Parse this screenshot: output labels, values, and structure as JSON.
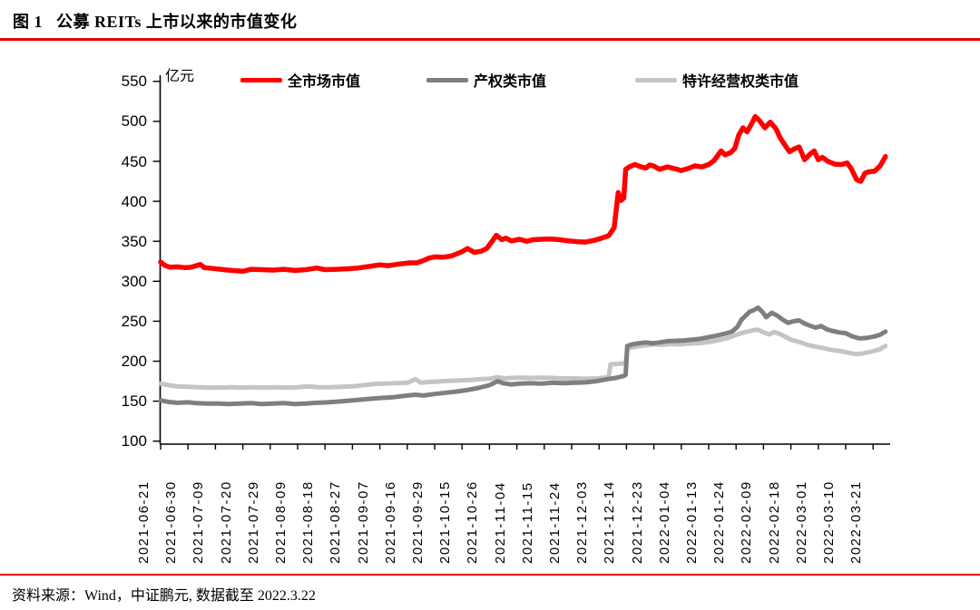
{
  "header": {
    "title": "图 1   公募 REITs 上市以来的市值变化"
  },
  "footer": {
    "source": "资料来源：Wind，中证鹏元, 数据截至 2022.3.22"
  },
  "accent_color": "#e60000",
  "chart_data": {
    "type": "line",
    "title": "公募REITs上市以来的市值变化",
    "unit_label": "亿元",
    "xlabel": "",
    "ylabel": "亿元",
    "ylim": [
      100,
      550
    ],
    "yticks": [
      100,
      150,
      200,
      250,
      300,
      350,
      400,
      450,
      500,
      550
    ],
    "grid": false,
    "legend_position": "top",
    "x_units": "tick_index (0 = first date label, 26 = last date label; data extends to 2022-03-22)",
    "x_tick_labels": [
      "2021-06-21",
      "2021-06-30",
      "2021-07-09",
      "2021-07-20",
      "2021-07-29",
      "2021-08-09",
      "2021-08-18",
      "2021-08-27",
      "2021-09-07",
      "2021-09-16",
      "2021-09-29",
      "2021-10-15",
      "2021-10-26",
      "2021-11-04",
      "2021-11-15",
      "2021-11-24",
      "2021-12-03",
      "2021-12-14",
      "2021-12-23",
      "2022-01-04",
      "2022-01-13",
      "2022-01-24",
      "2022-02-09",
      "2022-02-18",
      "2022-03-01",
      "2022-03-10",
      "2022-03-21"
    ],
    "series": [
      {
        "id": "franchise-type",
        "name": "特许经营权类市值",
        "color": "#c4c4c4",
        "width": 5,
        "points": [
          [
            0,
            172
          ],
          [
            0.3,
            170
          ],
          [
            0.6,
            168.5
          ],
          [
            1.0,
            168
          ],
          [
            1.4,
            167.5
          ],
          [
            1.8,
            167
          ],
          [
            2.2,
            167
          ],
          [
            2.6,
            167.5
          ],
          [
            3.0,
            167
          ],
          [
            3.4,
            167.5
          ],
          [
            3.8,
            167
          ],
          [
            4.2,
            167.5
          ],
          [
            4.6,
            167
          ],
          [
            5.0,
            167.5
          ],
          [
            5.4,
            168.5
          ],
          [
            5.8,
            167.5
          ],
          [
            6.2,
            167.5
          ],
          [
            6.6,
            168
          ],
          [
            7.0,
            168.5
          ],
          [
            7.4,
            170
          ],
          [
            7.8,
            171.5
          ],
          [
            8.2,
            172
          ],
          [
            8.6,
            172.5
          ],
          [
            9.0,
            173
          ],
          [
            9.3,
            177.5
          ],
          [
            9.5,
            173
          ],
          [
            9.8,
            174
          ],
          [
            10.1,
            174.5
          ],
          [
            10.5,
            175.5
          ],
          [
            10.9,
            176
          ],
          [
            11.3,
            176.5
          ],
          [
            11.7,
            177.5
          ],
          [
            12.0,
            178
          ],
          [
            12.3,
            180
          ],
          [
            12.55,
            178.5
          ],
          [
            12.8,
            179
          ],
          [
            13.1,
            179.5
          ],
          [
            13.5,
            179
          ],
          [
            13.9,
            179.5
          ],
          [
            14.3,
            179
          ],
          [
            14.7,
            178.5
          ],
          [
            15.1,
            178.5
          ],
          [
            15.5,
            178
          ],
          [
            15.9,
            178.5
          ],
          [
            16.2,
            179.5
          ],
          [
            16.35,
            181
          ],
          [
            16.42,
            196
          ],
          [
            16.6,
            196.5
          ],
          [
            16.8,
            197
          ],
          [
            16.97,
            197.5
          ],
          [
            17.03,
            216
          ],
          [
            17.25,
            217.5
          ],
          [
            17.5,
            219
          ],
          [
            17.75,
            220
          ],
          [
            18.0,
            221
          ],
          [
            18.3,
            220.5
          ],
          [
            18.6,
            221.5
          ],
          [
            18.9,
            221
          ],
          [
            19.2,
            222
          ],
          [
            19.5,
            222.5
          ],
          [
            19.8,
            223
          ],
          [
            20.1,
            224.5
          ],
          [
            20.4,
            226.5
          ],
          [
            20.7,
            229
          ],
          [
            21.0,
            233
          ],
          [
            21.3,
            236
          ],
          [
            21.6,
            238.5
          ],
          [
            21.8,
            239.5
          ],
          [
            22.0,
            236
          ],
          [
            22.2,
            233.5
          ],
          [
            22.4,
            236.5
          ],
          [
            22.6,
            234
          ],
          [
            22.8,
            230.5
          ],
          [
            23.0,
            227
          ],
          [
            23.2,
            225
          ],
          [
            23.4,
            223
          ],
          [
            23.6,
            220.5
          ],
          [
            23.85,
            218.5
          ],
          [
            24.1,
            217
          ],
          [
            24.35,
            215
          ],
          [
            24.6,
            213.5
          ],
          [
            24.85,
            212.5
          ],
          [
            25.1,
            210.5
          ],
          [
            25.35,
            209
          ],
          [
            25.6,
            209.5
          ],
          [
            25.85,
            211.5
          ],
          [
            26.05,
            213
          ],
          [
            26.25,
            215
          ],
          [
            26.45,
            219
          ]
        ]
      },
      {
        "id": "property-type",
        "name": "产权类市值",
        "color": "#7f7f7f",
        "width": 5,
        "points": [
          [
            0,
            151
          ],
          [
            0.3,
            149
          ],
          [
            0.6,
            148
          ],
          [
            1.0,
            148.5
          ],
          [
            1.3,
            147.5
          ],
          [
            1.7,
            147
          ],
          [
            2.1,
            147
          ],
          [
            2.5,
            146.5
          ],
          [
            2.9,
            147
          ],
          [
            3.3,
            147.5
          ],
          [
            3.7,
            146.5
          ],
          [
            4.1,
            147
          ],
          [
            4.5,
            147.5
          ],
          [
            4.9,
            146.5
          ],
          [
            5.3,
            147
          ],
          [
            5.7,
            148
          ],
          [
            6.1,
            148.5
          ],
          [
            6.5,
            149.5
          ],
          [
            7.0,
            151
          ],
          [
            7.5,
            152.5
          ],
          [
            8.0,
            154
          ],
          [
            8.5,
            155
          ],
          [
            9.0,
            157
          ],
          [
            9.3,
            158
          ],
          [
            9.6,
            157
          ],
          [
            10.0,
            159
          ],
          [
            10.4,
            160.5
          ],
          [
            10.8,
            162
          ],
          [
            11.2,
            164
          ],
          [
            11.6,
            166.5
          ],
          [
            12.0,
            170
          ],
          [
            12.3,
            175
          ],
          [
            12.5,
            172.5
          ],
          [
            12.8,
            171
          ],
          [
            13.1,
            172
          ],
          [
            13.5,
            172.5
          ],
          [
            13.9,
            172
          ],
          [
            14.3,
            173
          ],
          [
            14.7,
            172.5
          ],
          [
            15.1,
            173
          ],
          [
            15.5,
            173.5
          ],
          [
            15.9,
            175
          ],
          [
            16.3,
            177.5
          ],
          [
            16.6,
            179
          ],
          [
            16.9,
            181.5
          ],
          [
            16.97,
            183
          ],
          [
            17.03,
            219
          ],
          [
            17.2,
            221
          ],
          [
            17.45,
            222.5
          ],
          [
            17.7,
            223.5
          ],
          [
            17.95,
            222.5
          ],
          [
            18.2,
            223.5
          ],
          [
            18.5,
            225
          ],
          [
            18.8,
            225.5
          ],
          [
            19.1,
            226
          ],
          [
            19.4,
            227
          ],
          [
            19.7,
            228
          ],
          [
            20.0,
            230
          ],
          [
            20.3,
            232
          ],
          [
            20.6,
            234.5
          ],
          [
            20.85,
            237
          ],
          [
            21.05,
            243
          ],
          [
            21.2,
            252
          ],
          [
            21.35,
            257
          ],
          [
            21.5,
            262
          ],
          [
            21.65,
            264
          ],
          [
            21.8,
            267
          ],
          [
            21.95,
            262
          ],
          [
            22.1,
            255
          ],
          [
            22.3,
            260.5
          ],
          [
            22.5,
            257
          ],
          [
            22.7,
            252
          ],
          [
            22.9,
            248
          ],
          [
            23.1,
            250
          ],
          [
            23.3,
            251
          ],
          [
            23.5,
            247
          ],
          [
            23.7,
            244.5
          ],
          [
            23.9,
            242
          ],
          [
            24.1,
            244
          ],
          [
            24.3,
            240
          ],
          [
            24.5,
            238
          ],
          [
            24.75,
            236
          ],
          [
            25.0,
            235
          ],
          [
            25.25,
            231
          ],
          [
            25.5,
            228.5
          ],
          [
            25.75,
            229
          ],
          [
            26.05,
            231
          ],
          [
            26.25,
            233
          ],
          [
            26.45,
            237
          ]
        ]
      },
      {
        "id": "total-market",
        "name": "全市场市值",
        "color": "#fe0000",
        "width": 5.5,
        "points": [
          [
            0,
            324
          ],
          [
            0.15,
            320
          ],
          [
            0.35,
            317.5
          ],
          [
            0.6,
            318
          ],
          [
            0.9,
            317
          ],
          [
            1.1,
            317.5
          ],
          [
            1.45,
            321
          ],
          [
            1.6,
            317
          ],
          [
            1.9,
            316
          ],
          [
            2.2,
            315
          ],
          [
            2.6,
            313.5
          ],
          [
            3.0,
            312.5
          ],
          [
            3.3,
            315
          ],
          [
            3.7,
            314.5
          ],
          [
            4.1,
            314
          ],
          [
            4.5,
            315
          ],
          [
            4.9,
            313.5
          ],
          [
            5.3,
            314.5
          ],
          [
            5.7,
            316.5
          ],
          [
            6.0,
            314.5
          ],
          [
            6.4,
            315
          ],
          [
            6.8,
            315.5
          ],
          [
            7.2,
            316.5
          ],
          [
            7.6,
            318.5
          ],
          [
            8.0,
            320.5
          ],
          [
            8.3,
            319.5
          ],
          [
            8.7,
            321.5
          ],
          [
            9.1,
            323
          ],
          [
            9.35,
            323
          ],
          [
            9.6,
            326
          ],
          [
            9.8,
            329
          ],
          [
            10.0,
            330.5
          ],
          [
            10.3,
            330
          ],
          [
            10.6,
            331.5
          ],
          [
            11.0,
            337
          ],
          [
            11.2,
            341
          ],
          [
            11.45,
            336
          ],
          [
            11.7,
            337.5
          ],
          [
            11.9,
            341
          ],
          [
            12.1,
            350
          ],
          [
            12.25,
            357.5
          ],
          [
            12.45,
            352
          ],
          [
            12.6,
            354
          ],
          [
            12.8,
            350.5
          ],
          [
            13.1,
            352.5
          ],
          [
            13.35,
            350
          ],
          [
            13.6,
            352
          ],
          [
            13.9,
            352.5
          ],
          [
            14.2,
            353
          ],
          [
            14.55,
            352
          ],
          [
            14.9,
            350.5
          ],
          [
            15.2,
            349.5
          ],
          [
            15.5,
            349
          ],
          [
            15.8,
            351
          ],
          [
            16.1,
            354
          ],
          [
            16.35,
            357
          ],
          [
            16.55,
            367
          ],
          [
            16.7,
            411
          ],
          [
            16.8,
            401
          ],
          [
            16.9,
            404
          ],
          [
            16.97,
            440
          ],
          [
            17.1,
            443
          ],
          [
            17.3,
            446
          ],
          [
            17.5,
            443.5
          ],
          [
            17.7,
            441.5
          ],
          [
            17.85,
            445.5
          ],
          [
            18.0,
            444
          ],
          [
            18.2,
            440
          ],
          [
            18.5,
            443
          ],
          [
            18.8,
            440.5
          ],
          [
            19.0,
            438.5
          ],
          [
            19.25,
            441
          ],
          [
            19.5,
            444.5
          ],
          [
            19.75,
            443
          ],
          [
            20.0,
            446
          ],
          [
            20.2,
            451
          ],
          [
            20.45,
            463
          ],
          [
            20.6,
            458
          ],
          [
            20.8,
            461
          ],
          [
            20.95,
            466
          ],
          [
            21.1,
            483
          ],
          [
            21.25,
            492
          ],
          [
            21.4,
            487
          ],
          [
            21.55,
            496
          ],
          [
            21.7,
            506
          ],
          [
            21.85,
            501
          ],
          [
            22.05,
            492
          ],
          [
            22.25,
            499
          ],
          [
            22.45,
            491
          ],
          [
            22.6,
            480
          ],
          [
            22.75,
            472
          ],
          [
            22.95,
            462
          ],
          [
            23.15,
            466
          ],
          [
            23.3,
            468
          ],
          [
            23.5,
            452
          ],
          [
            23.7,
            459
          ],
          [
            23.85,
            463
          ],
          [
            24.0,
            452
          ],
          [
            24.15,
            455
          ],
          [
            24.35,
            450
          ],
          [
            24.6,
            446.5
          ],
          [
            24.85,
            446
          ],
          [
            25.05,
            448
          ],
          [
            25.2,
            441
          ],
          [
            25.4,
            427
          ],
          [
            25.55,
            425
          ],
          [
            25.7,
            435
          ],
          [
            25.85,
            437
          ],
          [
            26.05,
            437.5
          ],
          [
            26.25,
            444
          ],
          [
            26.45,
            456
          ]
        ]
      }
    ]
  }
}
